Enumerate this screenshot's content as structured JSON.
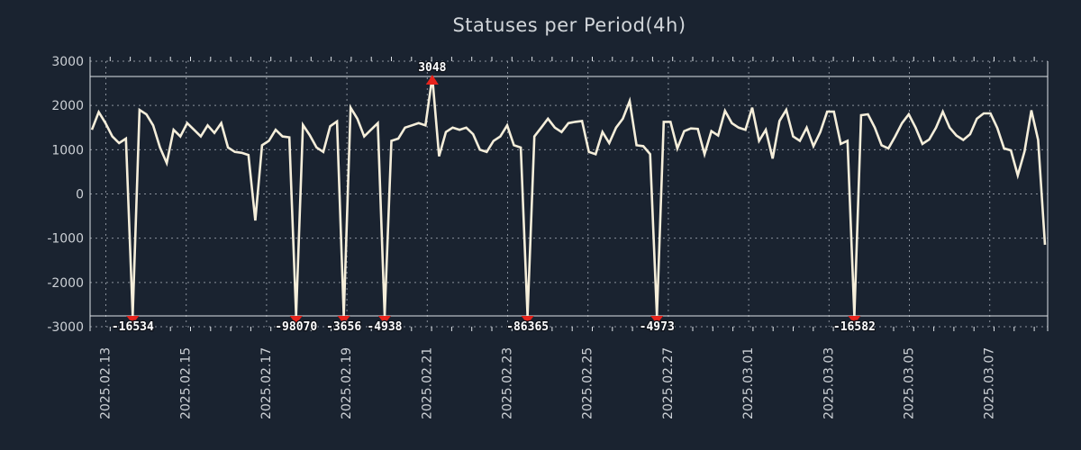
{
  "title": "Statuses per Period(4h)",
  "colors": {
    "background": "#1a2330",
    "line": "#f5eeda",
    "grid": "#8a919b",
    "frame": "#dfe3e7",
    "marker_red": "#e8241c",
    "tick_text": "#ccd0d5",
    "title_text": "#d2d6da",
    "annotation_text": "#ffffff"
  },
  "chart_data": {
    "type": "line",
    "title": "Statuses per Period(4h)",
    "series_name": "Statuses",
    "start_date": "2025.02.13",
    "interval_hours": 4,
    "ylim": [
      -3000,
      3000
    ],
    "clip_values": [
      2700,
      -2700
    ],
    "grid": "dashed",
    "legend": false,
    "y_ticks": [
      3000,
      2000,
      1000,
      0,
      -1000,
      -2000,
      -3000
    ],
    "x_tick_labels": [
      "2025.02.13",
      "2025.02.15",
      "2025.02.17",
      "2025.02.19",
      "2025.02.21",
      "2025.02.23",
      "2025.02.25",
      "2025.02.27",
      "2025.03.01",
      "2025.03.03",
      "2025.03.05",
      "2025.03.07"
    ],
    "values": [
      1450,
      1850,
      1600,
      1300,
      1150,
      1250,
      -16534,
      1900,
      1800,
      1550,
      1050,
      700,
      1450,
      1300,
      1600,
      1450,
      1300,
      1550,
      1380,
      1600,
      1050,
      950,
      930,
      880,
      -600,
      1100,
      1200,
      1450,
      1300,
      1280,
      -98070,
      1560,
      1330,
      1050,
      950,
      1530,
      1640,
      -3656,
      1950,
      1700,
      1300,
      1450,
      1600,
      -4938,
      1200,
      1250,
      1500,
      1550,
      1600,
      1550,
      3048,
      850,
      1400,
      1500,
      1450,
      1500,
      1350,
      1000,
      950,
      1200,
      1300,
      1550,
      1100,
      1050,
      -86365,
      1300,
      1500,
      1700,
      1500,
      1400,
      1600,
      1630,
      1650,
      950,
      900,
      1400,
      1150,
      1500,
      1700,
      2100,
      1100,
      1080,
      900,
      -4973,
      1630,
      1630,
      1030,
      1420,
      1480,
      1470,
      900,
      1420,
      1320,
      1880,
      1600,
      1500,
      1450,
      1950,
      1200,
      1450,
      800,
      1650,
      1900,
      1300,
      1200,
      1500,
      1080,
      1400,
      1860,
      1860,
      1130,
      1200,
      -16582,
      1780,
      1800,
      1500,
      1100,
      1030,
      1300,
      1600,
      1800,
      1500,
      1130,
      1230,
      1500,
      1860,
      1500,
      1320,
      1220,
      1350,
      1700,
      1820,
      1820,
      1490,
      1030,
      985,
      420,
      960,
      1890,
      1220,
      -1150
    ],
    "annotations": [
      {
        "point_index": 6,
        "value": -16534,
        "label": "-16534",
        "direction": "down"
      },
      {
        "point_index": 30,
        "value": -98070,
        "label": "-98070",
        "direction": "down"
      },
      {
        "point_index": 37,
        "value": -3656,
        "label": "-3656",
        "direction": "down"
      },
      {
        "point_index": 43,
        "value": -4938,
        "label": "-4938",
        "direction": "down"
      },
      {
        "point_index": 50,
        "value": 3048,
        "label": "3048",
        "direction": "up"
      },
      {
        "point_index": 64,
        "value": -86365,
        "label": "-86365",
        "direction": "down"
      },
      {
        "point_index": 83,
        "value": -4973,
        "label": "-4973",
        "direction": "down"
      },
      {
        "point_index": 112,
        "value": -16582,
        "label": "-16582",
        "direction": "down"
      }
    ]
  }
}
